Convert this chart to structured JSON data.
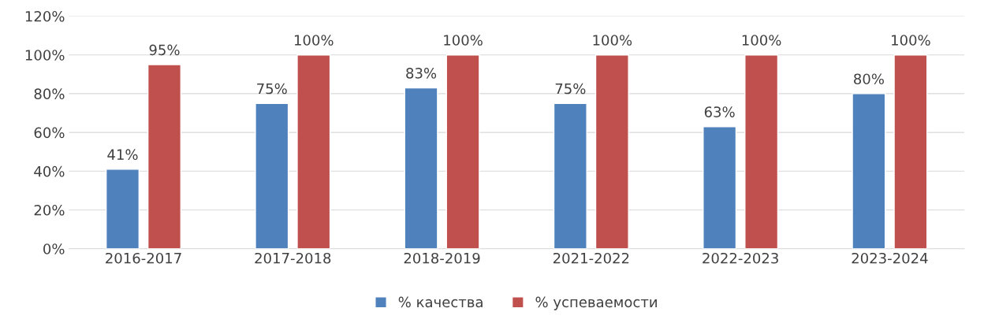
{
  "chart_data": {
    "type": "bar",
    "categories": [
      "2016-2017",
      "2017-2018",
      "2018-2019",
      "2021-2022",
      "2022-2023",
      "2023-2024"
    ],
    "series": [
      {
        "name": "% качества",
        "color": "#4f81bd",
        "values": [
          41,
          75,
          83,
          75,
          63,
          80
        ],
        "value_labels": [
          "41%",
          "75%",
          "83%",
          "75%",
          "63%",
          "80%"
        ]
      },
      {
        "name": "% успеваемости",
        "color": "#c0504d",
        "values": [
          95,
          100,
          100,
          100,
          100,
          100
        ],
        "value_labels": [
          "95%",
          "100%",
          "100%",
          "100%",
          "100%",
          "100%"
        ]
      }
    ],
    "ylim": [
      0,
      120
    ],
    "yticks": [
      {
        "value": 0,
        "label": "0%"
      },
      {
        "value": 20,
        "label": "20%"
      },
      {
        "value": 40,
        "label": "40%"
      },
      {
        "value": 60,
        "label": "60%"
      },
      {
        "value": 80,
        "label": "80%"
      },
      {
        "value": 100,
        "label": "100%"
      },
      {
        "value": 120,
        "label": "120%"
      }
    ],
    "grid": "y",
    "legend": "bottom"
  }
}
